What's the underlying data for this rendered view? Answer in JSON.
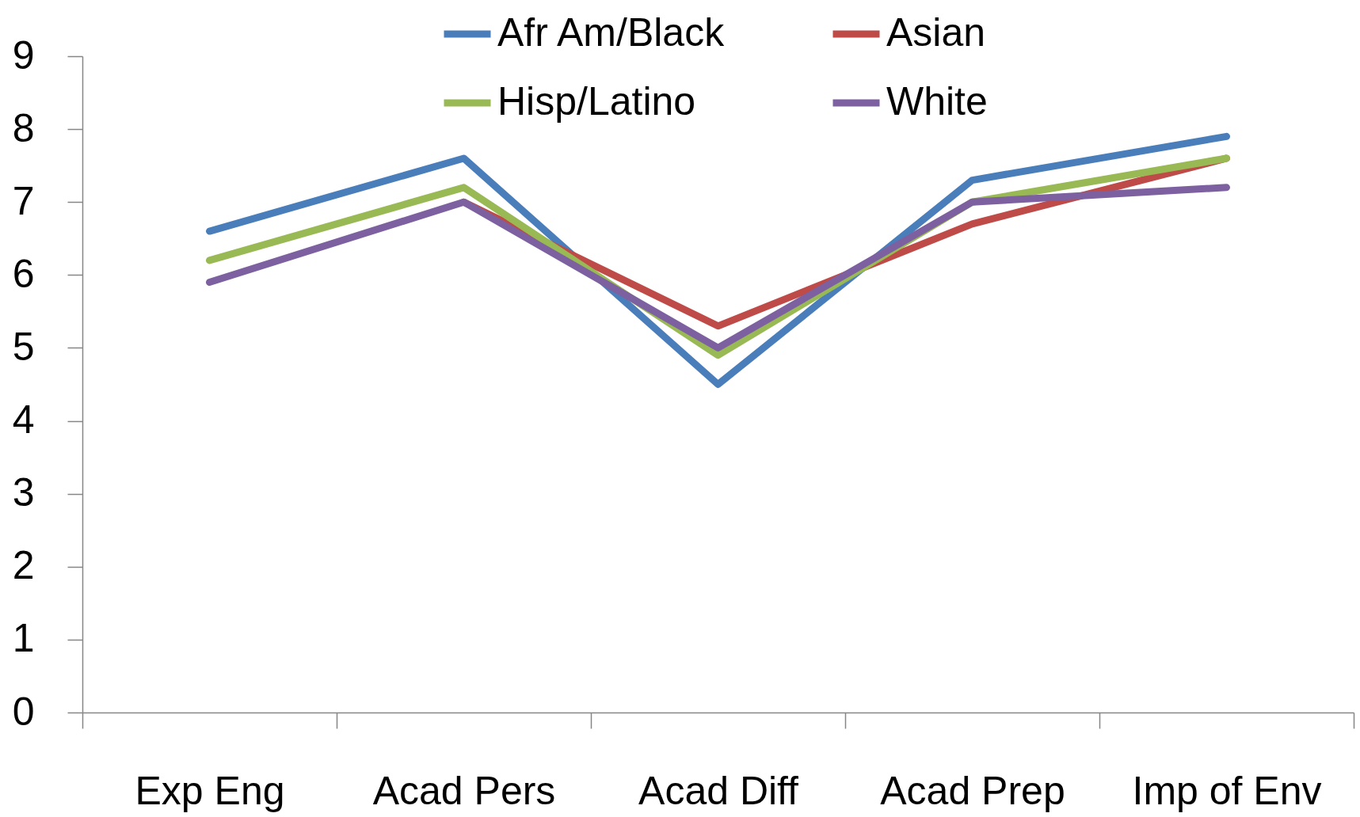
{
  "chart_data": {
    "type": "line",
    "categories": [
      "Exp Eng",
      "Acad Pers",
      "Acad Diff",
      "Acad Prep",
      "Imp of Env"
    ],
    "series": [
      {
        "name": "Afr Am/Black",
        "color": "#4a7ebb",
        "values": [
          6.6,
          7.6,
          4.5,
          7.3,
          7.9
        ]
      },
      {
        "name": "Asian",
        "color": "#be4b48",
        "values": [
          null,
          7.0,
          5.3,
          6.7,
          7.6
        ]
      },
      {
        "name": "Hisp/Latino",
        "color": "#98b954",
        "values": [
          6.2,
          7.2,
          4.9,
          7.0,
          7.6
        ]
      },
      {
        "name": "White",
        "color": "#7d60a0",
        "values": [
          5.9,
          7.0,
          5.0,
          7.0,
          7.2
        ]
      }
    ],
    "ylim": [
      0,
      9
    ],
    "yticks": [
      0,
      1,
      2,
      3,
      4,
      5,
      6,
      7,
      8,
      9
    ],
    "legend": "top",
    "line_style": "solid"
  }
}
